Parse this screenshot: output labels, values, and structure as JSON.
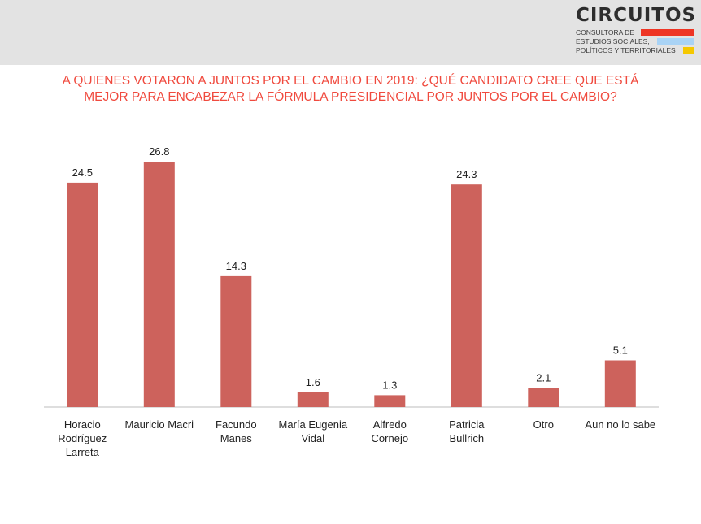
{
  "header": {
    "logo": {
      "name": "CIRCUITOS",
      "line1": "CONSULTORA DE",
      "line2": "ESTUDIOS SOCIALES,",
      "line3": "POLÍTICOS Y TERRITORIALES",
      "colors": [
        "#ee3524",
        "#a9d3f5",
        "#f5c800"
      ]
    }
  },
  "title_lines": [
    "A QUIENES VOTARON A JUNTOS POR EL CAMBIO EN 2019: ¿QUÉ CANDIDATO CREE QUE ESTÁ",
    "MEJOR PARA ENCABEZAR LA FÓRMULA PRESIDENCIAL POR JUNTOS POR EL CAMBIO?"
  ],
  "chart_data": {
    "type": "bar",
    "categories": [
      [
        "Horacio",
        "Rodríguez",
        "Larreta"
      ],
      [
        "Mauricio Macri"
      ],
      [
        "Facundo",
        "Manes"
      ],
      [
        "María Eugenia",
        "Vidal"
      ],
      [
        "Alfredo",
        "Cornejo"
      ],
      [
        "Patricia",
        "Bullrich"
      ],
      [
        "Otro"
      ],
      [
        "Aun no lo sabe"
      ]
    ],
    "values": [
      24.5,
      26.8,
      14.3,
      1.6,
      1.3,
      24.3,
      2.1,
      5.1
    ],
    "value_labels": [
      "24.5",
      "26.8",
      "14.3",
      "1.6",
      "1.3",
      "24.3",
      "2.1",
      "5.1"
    ],
    "bar_color": "#cd625c",
    "title": "",
    "xlabel": "",
    "ylabel": "",
    "ylim": [
      0,
      26.8
    ],
    "grid": false,
    "legend": "none"
  }
}
